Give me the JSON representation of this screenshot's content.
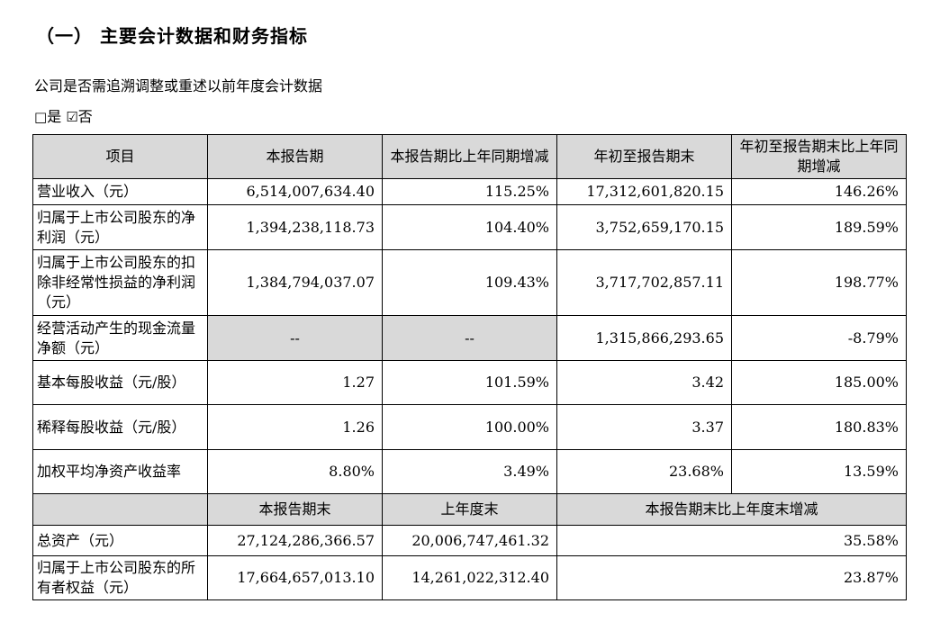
{
  "heading": "（一） 主要会计数据和财务指标",
  "question": "公司是否需追溯调整或重述以前年度会计数据",
  "options": {
    "yes_box": "□",
    "yes_label": "是",
    "no_box": "☑",
    "no_label": "否"
  },
  "table": {
    "headers": [
      "项目",
      "本报告期",
      "本报告期比上年同期增减",
      "年初至报告期末",
      "年初至报告期末比上年同期增减"
    ],
    "rows": [
      {
        "label": "营业收入（元）",
        "current": "6,514,007,634.40",
        "current_change": "115.25%",
        "ytd": "17,312,601,820.15",
        "ytd_change": "146.26%"
      },
      {
        "label": "归属于上市公司股东的净利润（元）",
        "current": "1,394,238,118.73",
        "current_change": "104.40%",
        "ytd": "3,752,659,170.15",
        "ytd_change": "189.59%"
      },
      {
        "label": "归属于上市公司股东的扣除非经常性损益的净利润（元）",
        "current": "1,384,794,037.07",
        "current_change": "109.43%",
        "ytd": "3,717,702,857.11",
        "ytd_change": "198.77%"
      },
      {
        "label": "经营活动产生的现金流量净额（元）",
        "current": "--",
        "current_change": "--",
        "ytd": "1,315,866,293.65",
        "ytd_change": "-8.79%"
      },
      {
        "label": "基本每股收益（元/股）",
        "current": "1.27",
        "current_change": "101.59%",
        "ytd": "3.42",
        "ytd_change": "185.00%"
      },
      {
        "label": "稀释每股收益（元/股）",
        "current": "1.26",
        "current_change": "100.00%",
        "ytd": "3.37",
        "ytd_change": "180.83%"
      },
      {
        "label": "加权平均净资产收益率",
        "current": "8.80%",
        "current_change": "3.49%",
        "ytd": "23.68%",
        "ytd_change": "13.59%"
      }
    ],
    "sub_headers": [
      "本报告期末",
      "上年度末",
      "本报告期末比上年度末增减"
    ],
    "bottom_rows": [
      {
        "label": "总资产（元）",
        "period_end": "27,124,286,366.57",
        "prev_year_end": "20,006,747,461.32",
        "change": "35.58%"
      },
      {
        "label": "归属于上市公司股东的所有者权益（元）",
        "period_end": "17,664,657,013.10",
        "prev_year_end": "14,261,022,312.40",
        "change": "23.87%"
      }
    ]
  }
}
